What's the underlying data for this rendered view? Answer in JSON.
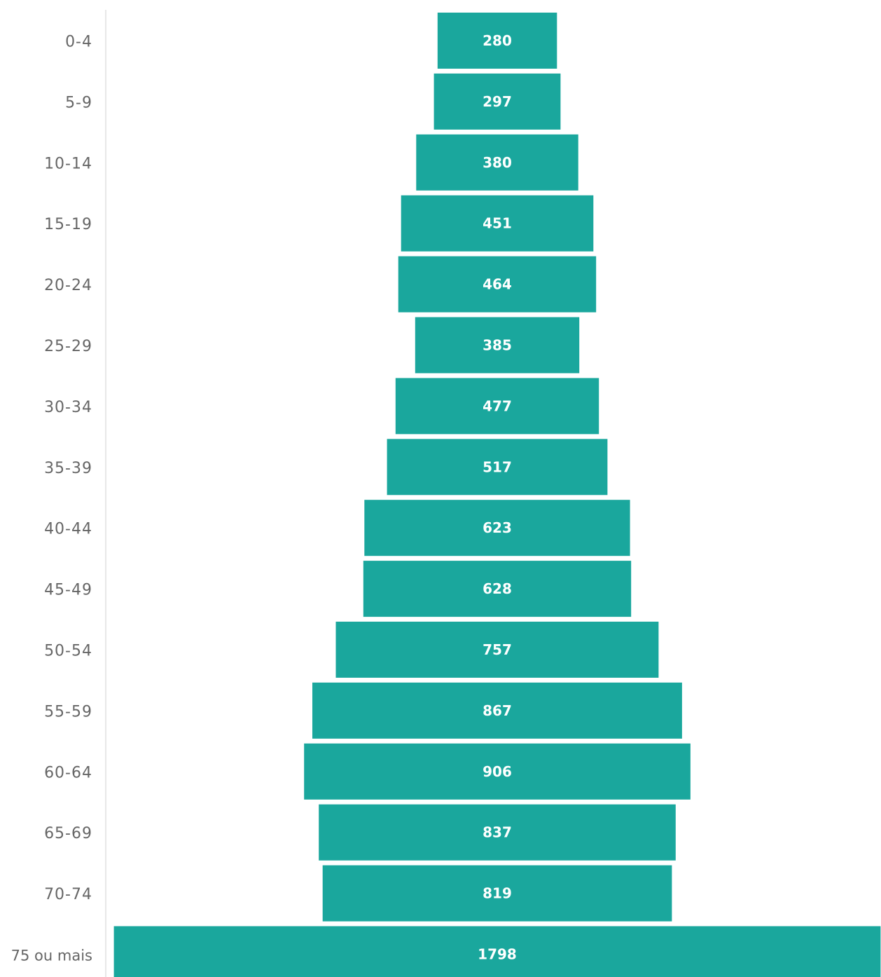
{
  "chart_data": {
    "type": "bar",
    "orientation": "horizontal-centered",
    "categories": [
      "0-4",
      "5-9",
      "10-14",
      "15-19",
      "20-24",
      "25-29",
      "30-34",
      "35-39",
      "40-44",
      "45-49",
      "50-54",
      "55-59",
      "60-64",
      "65-69",
      "70-74",
      "75 ou mais"
    ],
    "values": [
      280,
      297,
      380,
      451,
      464,
      385,
      477,
      517,
      623,
      628,
      757,
      867,
      906,
      837,
      819,
      1798
    ],
    "data_labels": [
      "280",
      "297",
      "380",
      "451",
      "464",
      "385",
      "477",
      "517",
      "623",
      "628",
      "757",
      "867",
      "906",
      "837",
      "819",
      "1798"
    ],
    "xlim": [
      0,
      1800
    ],
    "grid": false,
    "legend": "none",
    "bar_color": "#1aa79d"
  }
}
